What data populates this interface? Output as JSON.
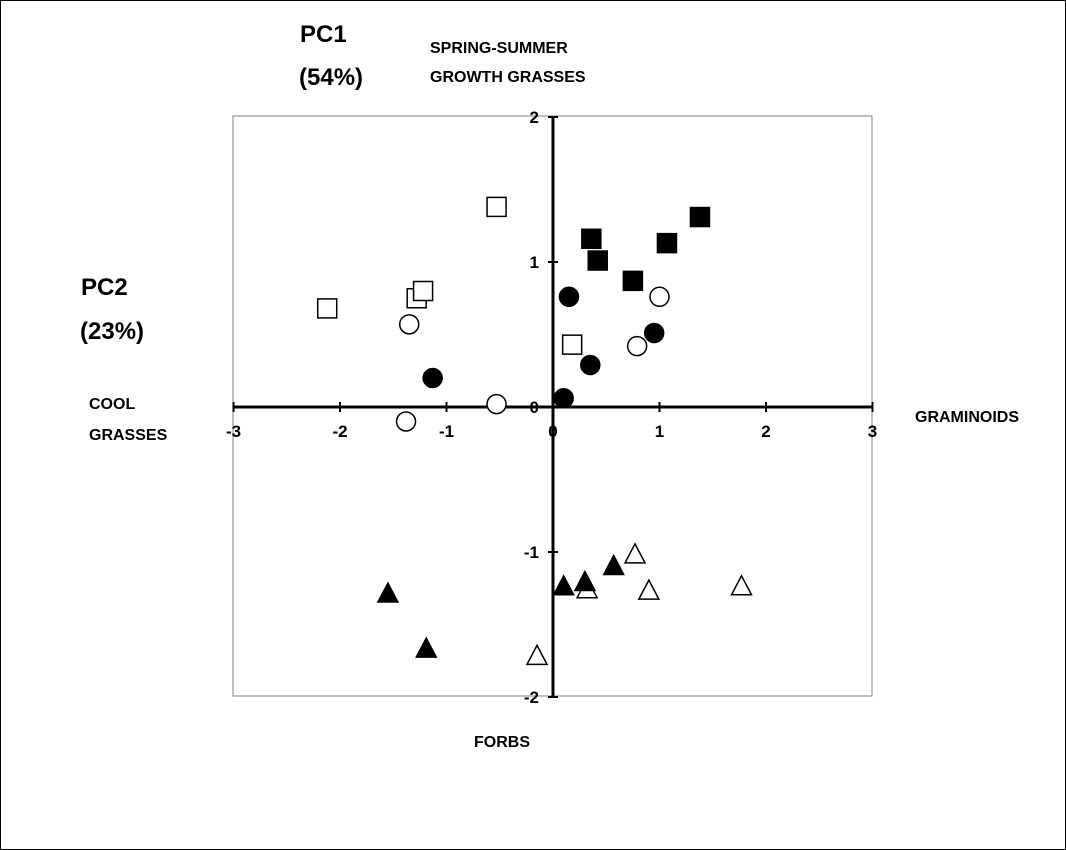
{
  "chart_data": {
    "type": "scatter",
    "labels": {
      "pc1": "PC1",
      "pc1_pct": "(54%)",
      "pc2": "PC2",
      "pc2_pct": "(23%)",
      "top_line1": "SPRING-SUMMER",
      "top_line2": "GROWTH GRASSES",
      "left_line1": "COOL",
      "left_line2": "GRASSES",
      "right": "GRAMINOIDS",
      "bottom": "FORBS"
    },
    "x_ticks": [
      "-3",
      "-2",
      "-1",
      "0",
      "1",
      "2",
      "3"
    ],
    "y_ticks": [
      "2",
      "1",
      "0",
      "-1",
      "-2"
    ],
    "xlim": [
      -3,
      3
    ],
    "ylim": [
      -2,
      2
    ],
    "grid": false,
    "legend": "none",
    "series": [
      {
        "marker": "square-open",
        "points": [
          [
            -2.12,
            0.68
          ],
          [
            -1.28,
            0.75
          ],
          [
            -1.22,
            0.8
          ],
          [
            -0.53,
            1.38
          ],
          [
            0.18,
            0.43
          ]
        ]
      },
      {
        "marker": "square-filled",
        "points": [
          [
            0.36,
            1.16
          ],
          [
            0.42,
            1.01
          ],
          [
            0.75,
            0.87
          ],
          [
            1.07,
            1.13
          ],
          [
            1.38,
            1.31
          ]
        ]
      },
      {
        "marker": "circle-open",
        "points": [
          [
            -1.35,
            0.57
          ],
          [
            -1.38,
            -0.1
          ],
          [
            -0.53,
            0.02
          ],
          [
            0.79,
            0.42
          ],
          [
            1.0,
            0.76
          ]
        ]
      },
      {
        "marker": "circle-filled",
        "points": [
          [
            -1.13,
            0.2
          ],
          [
            0.15,
            0.76
          ],
          [
            0.1,
            0.06
          ],
          [
            0.35,
            0.29
          ],
          [
            0.95,
            0.51
          ]
        ]
      },
      {
        "marker": "triangle-open",
        "points": [
          [
            -0.15,
            -1.72
          ],
          [
            0.32,
            -1.26
          ],
          [
            0.77,
            -1.02
          ],
          [
            0.9,
            -1.27
          ],
          [
            1.77,
            -1.24
          ]
        ]
      },
      {
        "marker": "triangle-filled",
        "points": [
          [
            -1.55,
            -1.29
          ],
          [
            -1.19,
            -1.67
          ],
          [
            0.1,
            -1.24
          ],
          [
            0.3,
            -1.21
          ],
          [
            0.57,
            -1.1
          ]
        ]
      }
    ]
  }
}
